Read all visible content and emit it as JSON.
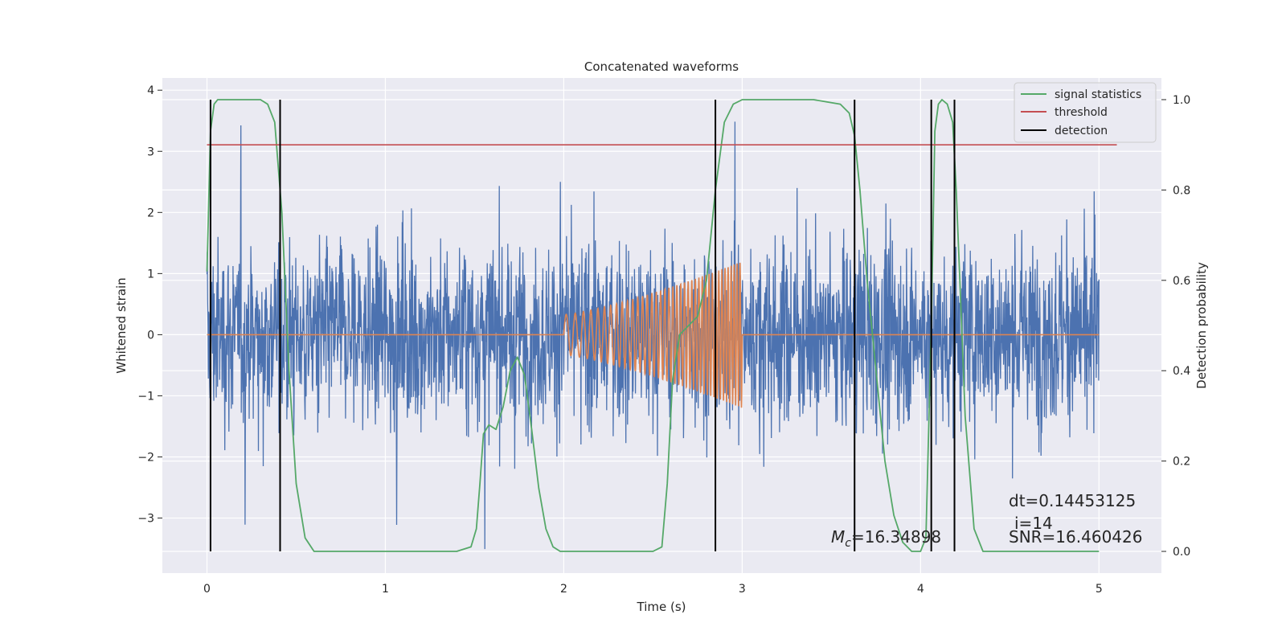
{
  "chart_data": {
    "type": "line",
    "title": "Concatenated waveforms",
    "xlabel": "Time (s)",
    "ylabel": "Whitened strain",
    "y2label": "Detection probability",
    "xlim": [
      -0.25,
      5.35
    ],
    "ylim": [
      -3.9,
      4.2
    ],
    "y2lim": [
      -0.048,
      1.048
    ],
    "x_ticks": [
      0,
      1,
      2,
      3,
      4,
      5
    ],
    "y_ticks": [
      -3,
      -2,
      -1,
      0,
      1,
      2,
      3,
      4
    ],
    "y2_ticks": [
      "0.0",
      "0.2",
      "0.4",
      "0.6",
      "0.8",
      "1.0"
    ],
    "y2_tick_values": [
      0.0,
      0.2,
      0.4,
      0.6,
      0.8,
      1.0
    ],
    "grid": true,
    "legend_position": "top-right",
    "legend": [
      {
        "label": "signal statistics",
        "color": "#55a868"
      },
      {
        "label": "threshold",
        "color": "#c44e52"
      },
      {
        "label": "detection",
        "color": "#000000"
      }
    ],
    "colors": {
      "strain": "#4c72b0",
      "injected": "#dd8452",
      "signal_statistics": "#55a868",
      "threshold": "#c44e52",
      "detection": "#000000",
      "background": "#eaeaf2",
      "grid": "#ffffff"
    },
    "series": [
      {
        "name": "",
        "axis": "left",
        "description_type": "noise",
        "x_range": [
          0,
          5
        ],
        "values_envelope": [
          -3.6,
          3.6
        ]
      },
      {
        "name": "",
        "axis": "left",
        "description_type": "chirp",
        "x_range": [
          0,
          5
        ],
        "chirp_start": 2.0,
        "chirp_end": 3.0,
        "amplitude_start": 0.33,
        "amplitude_end": 1.2
      },
      {
        "name": "signal statistics",
        "axis": "right",
        "x": [
          0.0,
          0.02,
          0.04,
          0.06,
          0.1,
          0.2,
          0.3,
          0.34,
          0.38,
          0.42,
          0.46,
          0.5,
          0.55,
          0.6,
          0.8,
          1.0,
          1.2,
          1.4,
          1.48,
          1.51,
          1.53,
          1.55,
          1.58,
          1.62,
          1.66,
          1.7,
          1.74,
          1.78,
          1.82,
          1.86,
          1.9,
          1.94,
          1.98,
          2.1,
          2.3,
          2.5,
          2.55,
          2.58,
          2.61,
          2.65,
          2.7,
          2.75,
          2.8,
          2.85,
          2.9,
          2.95,
          3.0,
          3.2,
          3.4,
          3.55,
          3.6,
          3.63,
          3.66,
          3.7,
          3.75,
          3.8,
          3.85,
          3.9,
          3.95,
          4.0,
          4.03,
          4.06,
          4.08,
          4.1,
          4.12,
          4.15,
          4.18,
          4.2,
          4.22,
          4.25,
          4.3,
          4.35,
          4.4,
          4.6,
          4.8,
          5.0
        ],
        "values": [
          0.62,
          0.93,
          0.99,
          1.0,
          1.0,
          1.0,
          1.0,
          0.99,
          0.95,
          0.75,
          0.4,
          0.15,
          0.03,
          0.0,
          0.0,
          0.0,
          0.0,
          0.0,
          0.01,
          0.05,
          0.15,
          0.26,
          0.28,
          0.27,
          0.32,
          0.4,
          0.43,
          0.39,
          0.27,
          0.14,
          0.05,
          0.01,
          0.0,
          0.0,
          0.0,
          0.0,
          0.01,
          0.15,
          0.38,
          0.48,
          0.5,
          0.52,
          0.6,
          0.8,
          0.95,
          0.99,
          1.0,
          1.0,
          1.0,
          0.99,
          0.97,
          0.92,
          0.8,
          0.6,
          0.4,
          0.2,
          0.08,
          0.02,
          0.0,
          0.0,
          0.03,
          0.5,
          0.93,
          0.99,
          1.0,
          0.99,
          0.95,
          0.8,
          0.6,
          0.3,
          0.05,
          0.0,
          0.0,
          0.0,
          0.0,
          0.0
        ]
      },
      {
        "name": "threshold",
        "axis": "right",
        "x": [
          0.0,
          5.1
        ],
        "values": [
          0.9,
          0.9
        ]
      },
      {
        "name": "detection",
        "axis": "right",
        "type": "vlines",
        "x": [
          0.02,
          0.41,
          2.85,
          3.63,
          4.06,
          4.19
        ],
        "ymin": 0.0,
        "ymax": 1.0
      }
    ],
    "annotations": {
      "mc_symbol": "M",
      "mc_subscript": "c",
      "mc_value": "=16.34898",
      "dt": "dt=0.14453125",
      "i": "i=14",
      "snr": "SNR=16.460426"
    }
  }
}
